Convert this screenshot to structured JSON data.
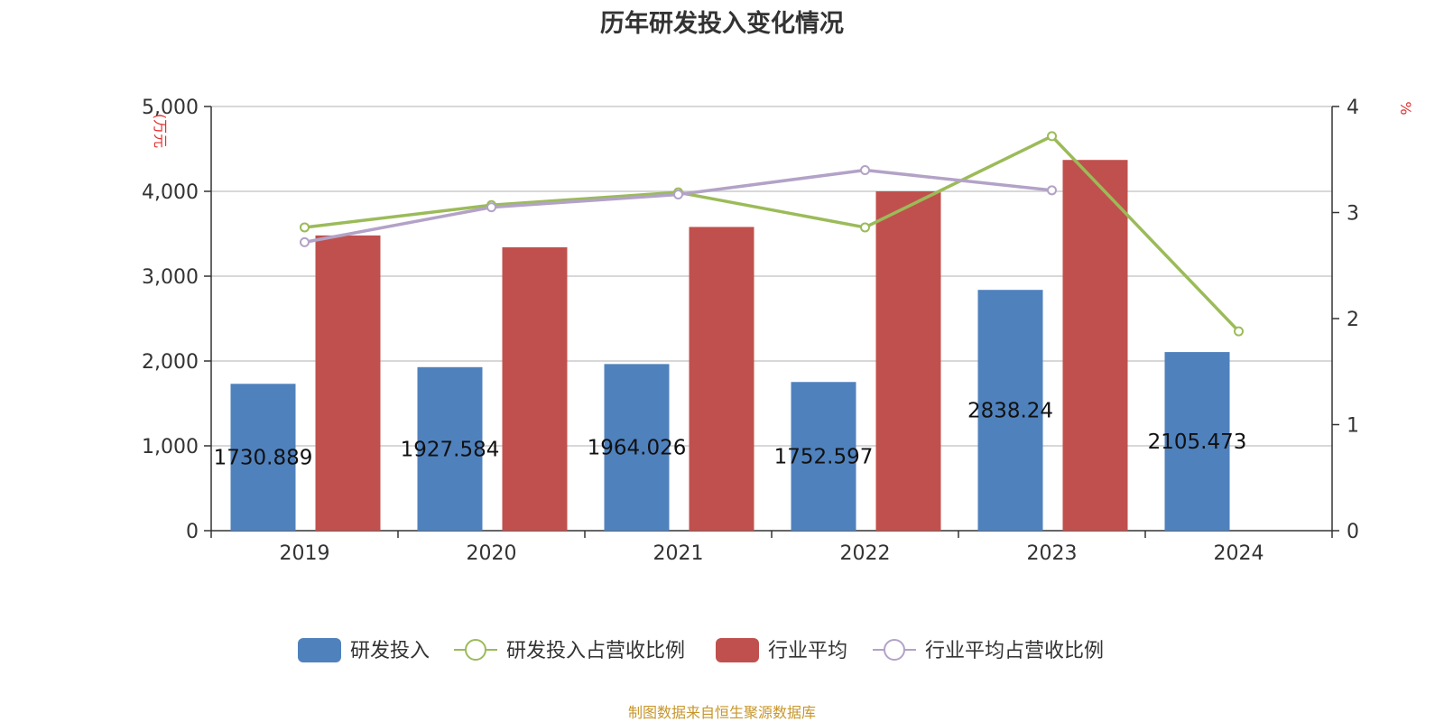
{
  "source": "制图数据来自恒生聚源数据库",
  "chart_data": {
    "type": "bar",
    "title": "历年研发投入变化情况",
    "categories": [
      "2019",
      "2020",
      "2021",
      "2022",
      "2023",
      "2024"
    ],
    "y_left": {
      "label": "(万元",
      "ticks": [
        "0",
        "1,000",
        "2,000",
        "3,000",
        "4,000",
        "5,000"
      ],
      "ylim": [
        0,
        5000
      ]
    },
    "y_right": {
      "label": "%",
      "ticks": [
        "0",
        "1",
        "2",
        "3",
        "4"
      ],
      "ylim": [
        0,
        4
      ]
    },
    "grid": true,
    "legend_position": "bottom-center",
    "series": [
      {
        "name": "研发投入",
        "type": "bar",
        "axis": "left",
        "color": "#4f81bd",
        "values": [
          1730.889,
          1927.584,
          1964.026,
          1752.597,
          2838.24,
          2105.473
        ],
        "labels": [
          "1730.889",
          "1927.584",
          "1964.026",
          "1752.597",
          "2838.24",
          "2105.473"
        ]
      },
      {
        "name": "研发投入占营收比例",
        "type": "line",
        "axis": "right",
        "color": "#9bbb59",
        "values": [
          2.86,
          3.07,
          3.19,
          2.86,
          3.72,
          1.88
        ]
      },
      {
        "name": "行业平均",
        "type": "bar",
        "axis": "left",
        "color": "#c0504d",
        "values": [
          3480,
          3340,
          3580,
          4000,
          4370,
          null
        ]
      },
      {
        "name": "行业平均占营收比例",
        "type": "line",
        "axis": "right",
        "color": "#b3a2c7",
        "values": [
          2.72,
          3.05,
          3.17,
          3.4,
          3.21,
          null
        ]
      }
    ]
  }
}
